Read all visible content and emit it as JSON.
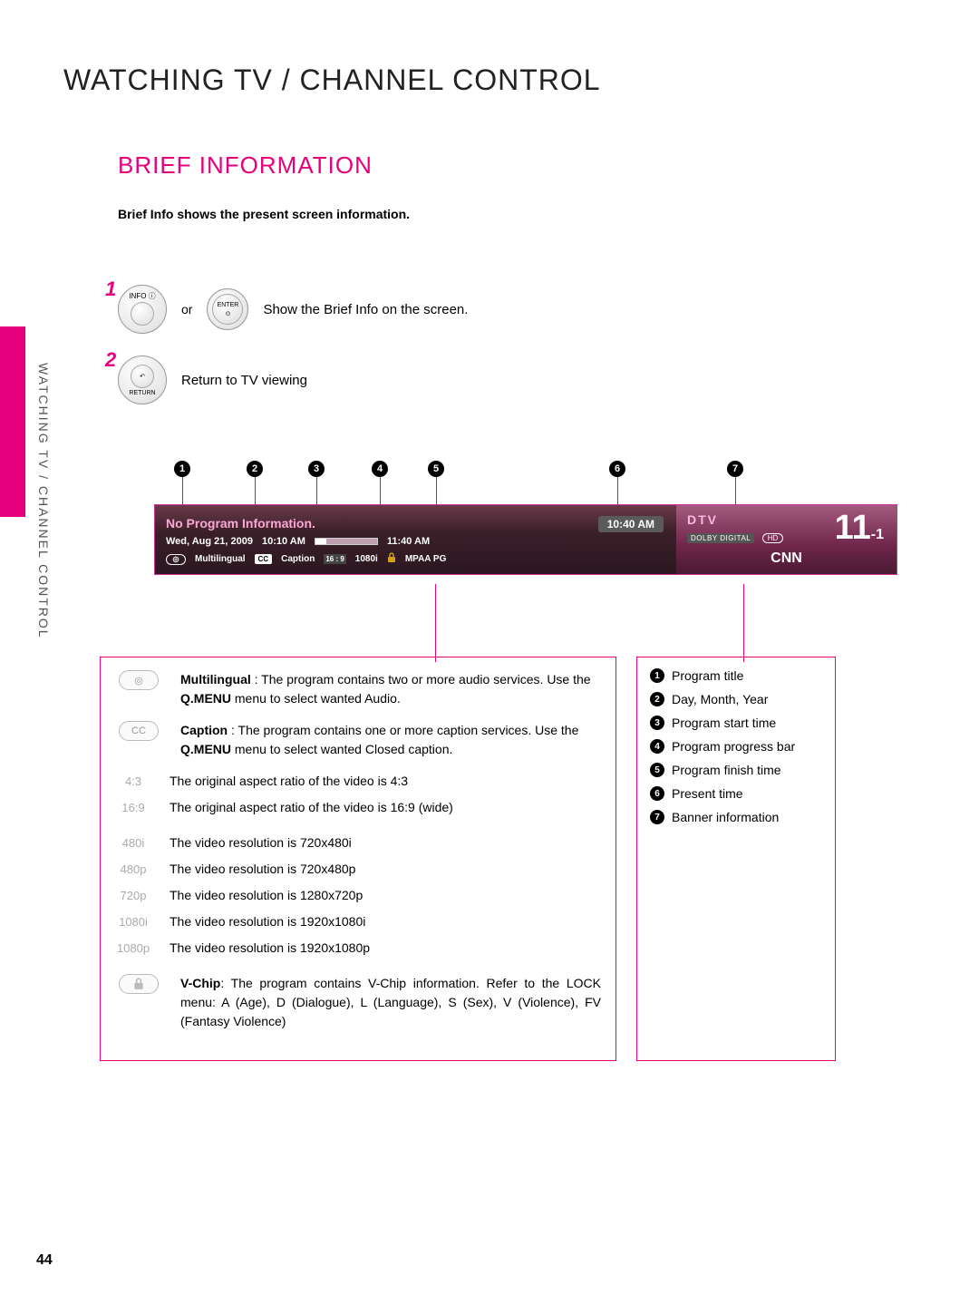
{
  "pageNumber": "44",
  "sideLabel": "WATCHING TV / CHANNEL CONTROL",
  "heading1": "WATCHING TV / CHANNEL CONTROL",
  "heading2": "BRIEF INFORMATION",
  "intro": "Brief Info shows the present screen information.",
  "steps": {
    "s1": {
      "num": "1",
      "btn1Top": "INFO ⓘ",
      "or": "or",
      "btn2Top": "ENTER",
      "btn2Dot": "⊙",
      "desc": "Show the Brief Info on the screen."
    },
    "s2": {
      "num": "2",
      "btnIcon": "↶",
      "btnBot": "RETURN",
      "desc": "Return to TV viewing"
    }
  },
  "banner": {
    "title": "No Program Information.",
    "date": "Wed, Aug 21, 2009",
    "start": "10:10 AM",
    "end": "11:40 AM",
    "now": "10:40 AM",
    "ml": "Multilingual",
    "cc": "CC",
    "ccWord": "Caption",
    "resBadge": "16 : 9",
    "resText": "1080i",
    "rating": "MPAA PG",
    "dtv": "DTV",
    "dolby": "DOLBY DIGITAL",
    "hd": "HD",
    "chMajor": "11",
    "chMinor": "-1",
    "chName": "CNN"
  },
  "calloutLabels": [
    "1",
    "2",
    "3",
    "4",
    "5",
    "6",
    "7"
  ],
  "legend": {
    "multilingual": {
      "bold": "Multilingual",
      "rest": " : The program contains two or more audio services. Use the ",
      "menu": "Q.MENU",
      "rest2": " menu to select wanted Audio."
    },
    "caption": {
      "bold": "Caption",
      "rest": " : The program contains one or more caption services. Use the ",
      "menu": "Q.MENU",
      "rest2": " menu to select wanted Closed caption."
    },
    "ar43": "The original aspect ratio of the video is 4:3",
    "ar169": "The original aspect ratio of the video is 16:9 (wide)",
    "r480i": "The video resolution is 720x480i",
    "r480p": "The video resolution is 720x480p",
    "r720p": "The video resolution is 1280x720p",
    "r1080i": "The video resolution is 1920x1080i",
    "r1080p": "The video resolution is 1920x1080p",
    "vchip": {
      "bold": "V-Chip",
      "rest": ": The program contains V-Chip information. Refer to the LOCK menu: A (Age), D (Dialogue), L (Language), S (Sex), V (Violence), FV (Fantasy Violence)"
    },
    "labels": {
      "ar43": "4:3",
      "ar169": "16:9",
      "l480i": "480i",
      "l480p": "480p",
      "l720p": "720p",
      "l1080i": "1080i",
      "l1080p": "1080p"
    }
  },
  "rightLegend": [
    "Program title",
    "Day, Month, Year",
    "Program start time",
    "Program progress bar",
    "Program finish time",
    "Present time",
    "Banner information"
  ]
}
